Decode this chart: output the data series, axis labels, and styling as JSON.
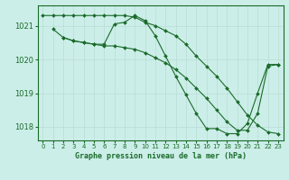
{
  "title": "Graphe pression niveau de la mer (hPa)",
  "background_color": "#cceee8",
  "grid_color": "#b8ddd6",
  "line_color": "#1a6b2a",
  "marker_color": "#1a6b2a",
  "xlim": [
    -0.5,
    23.5
  ],
  "ylim": [
    1017.6,
    1021.6
  ],
  "yticks": [
    1018,
    1019,
    1020,
    1021
  ],
  "xticks": [
    0,
    1,
    2,
    3,
    4,
    5,
    6,
    7,
    8,
    9,
    10,
    11,
    12,
    13,
    14,
    15,
    16,
    17,
    18,
    19,
    20,
    21,
    22,
    23
  ],
  "series1": {
    "x": [
      0,
      1,
      2,
      3,
      4,
      5,
      6,
      7,
      8,
      9,
      10,
      11,
      12,
      13,
      14,
      15,
      16,
      17,
      18,
      19,
      20,
      21,
      22,
      23
    ],
    "y": [
      1021.3,
      1021.3,
      1021.3,
      1021.3,
      1021.3,
      1021.3,
      1021.3,
      1021.3,
      1021.3,
      1021.25,
      1021.1,
      1021.0,
      1020.85,
      1020.7,
      1020.45,
      1020.1,
      1019.8,
      1019.5,
      1019.15,
      1018.75,
      1018.35,
      1018.05,
      1017.85,
      1017.8
    ]
  },
  "series2": {
    "x": [
      1,
      2,
      3,
      4,
      5,
      6,
      7,
      8,
      9,
      10,
      11,
      12,
      13,
      14,
      15,
      16,
      17,
      18,
      19,
      20,
      21,
      22,
      23
    ],
    "y": [
      1020.9,
      1020.65,
      1020.55,
      1020.5,
      1020.45,
      1020.45,
      1021.05,
      1021.1,
      1021.3,
      1021.15,
      1020.7,
      1020.1,
      1019.5,
      1018.95,
      1018.4,
      1017.95,
      1017.95,
      1017.8,
      1017.8,
      1018.1,
      1019.0,
      1019.85,
      1019.85
    ]
  },
  "series3": {
    "x": [
      2,
      3,
      4,
      5,
      6,
      7,
      8,
      9,
      10,
      11,
      12,
      13,
      14,
      15,
      16,
      17,
      18,
      19,
      20,
      21,
      22,
      23
    ],
    "y": [
      1020.65,
      1020.55,
      1020.5,
      1020.45,
      1020.4,
      1020.4,
      1020.35,
      1020.3,
      1020.2,
      1020.05,
      1019.9,
      1019.7,
      1019.45,
      1019.15,
      1018.85,
      1018.5,
      1018.15,
      1017.9,
      1017.9,
      1018.4,
      1019.8,
      1019.85
    ]
  }
}
